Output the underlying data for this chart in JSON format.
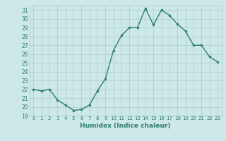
{
  "x": [
    0,
    1,
    2,
    3,
    4,
    5,
    6,
    7,
    8,
    9,
    10,
    11,
    12,
    13,
    14,
    15,
    16,
    17,
    18,
    19,
    20,
    21,
    22,
    23
  ],
  "y": [
    22,
    21.8,
    22,
    20.8,
    20.2,
    19.6,
    19.7,
    20.2,
    21.8,
    23.2,
    26.4,
    28.1,
    29.0,
    29.0,
    31.2,
    29.3,
    31.0,
    30.4,
    29.4,
    28.6,
    27.0,
    27.0,
    25.7,
    25.1
  ],
  "xlabel": "Humidex (Indice chaleur)",
  "ylim": [
    19,
    31.5
  ],
  "xlim": [
    -0.5,
    23.5
  ],
  "yticks": [
    19,
    20,
    21,
    22,
    23,
    24,
    25,
    26,
    27,
    28,
    29,
    30,
    31
  ],
  "xticks": [
    0,
    1,
    2,
    3,
    4,
    5,
    6,
    7,
    8,
    9,
    10,
    11,
    12,
    13,
    14,
    15,
    16,
    17,
    18,
    19,
    20,
    21,
    22,
    23
  ],
  "line_color": "#2e7d6e",
  "marker_color": "#2e7d6e",
  "bg_color": "#cce8e8",
  "grid_color": "#aacccc",
  "text_color": "#2e7d6e"
}
